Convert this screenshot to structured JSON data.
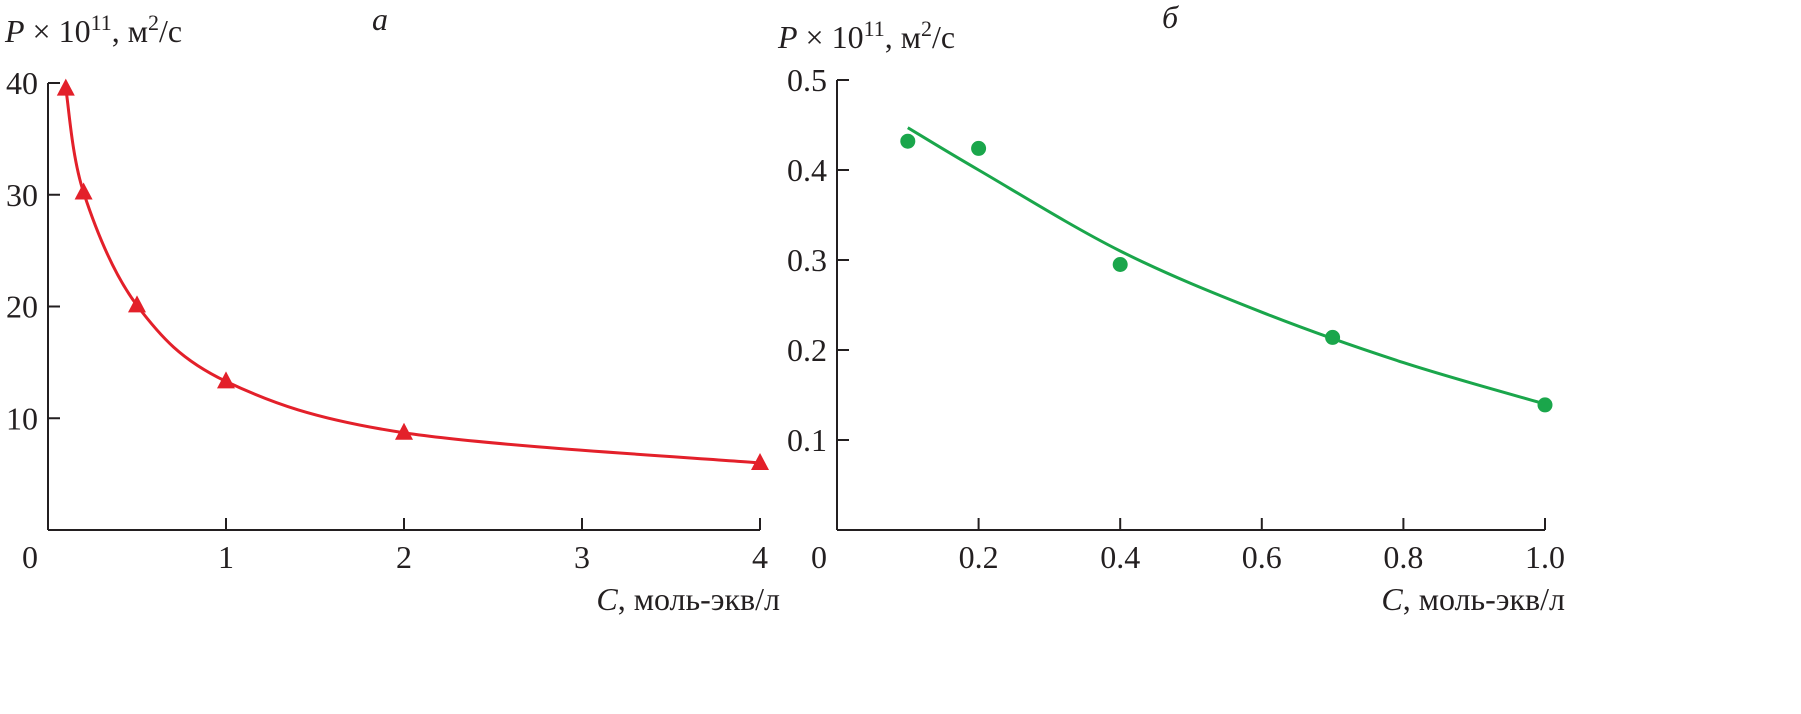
{
  "chart_data": [
    {
      "type": "line",
      "panel_label": "а",
      "ylabel": {
        "symbol": "P",
        "times": " × 10",
        "exp": "11",
        "unit": ", м",
        "unit_exp": "2",
        "unit_rest": "/с"
      },
      "xlabel": {
        "symbol": "C",
        "unit": ", моль-экв/л"
      },
      "xlim": [
        0,
        4
      ],
      "ylim": [
        0,
        40
      ],
      "xticks": [
        0,
        1,
        2,
        3,
        4
      ],
      "yticks": [
        10,
        20,
        30,
        40
      ],
      "series": [
        {
          "color": "#e3202a",
          "marker": "triangle",
          "smooth": true,
          "x": [
            0.1,
            0.2,
            0.5,
            1,
            2,
            4
          ],
          "values": [
            39.5,
            30.2,
            20.1,
            13.3,
            8.7,
            6.0
          ]
        }
      ]
    },
    {
      "type": "scatter",
      "panel_label": "б",
      "ylabel": {
        "symbol": "P",
        "times": " × 10",
        "exp": "11",
        "unit": ", м",
        "unit_exp": "2",
        "unit_rest": "/с"
      },
      "xlabel": {
        "symbol": "C",
        "unit": ", моль-экв/л"
      },
      "xlim": [
        0,
        1
      ],
      "ylim": [
        0,
        0.5
      ],
      "xticks": [
        0,
        0.2,
        0.4,
        0.6,
        0.8,
        {
          "value": 1,
          "label": "1.0"
        }
      ],
      "yticks": [
        0.1,
        0.2,
        0.3,
        0.4,
        0.5
      ],
      "series": [
        {
          "color": "#1aa64b",
          "marker": "circle",
          "x": [
            0.1,
            0.2,
            0.4,
            0.7,
            1.0
          ],
          "values": [
            0.432,
            0.424,
            0.295,
            0.214,
            0.139
          ]
        },
        {
          "color": "#1aa64b",
          "marker": "none",
          "smooth": true,
          "x": [
            0.1,
            0.2,
            0.4,
            0.6,
            0.8,
            1.0
          ],
          "values": [
            0.447,
            0.4,
            0.31,
            0.242,
            0.186,
            0.14
          ]
        }
      ]
    }
  ]
}
